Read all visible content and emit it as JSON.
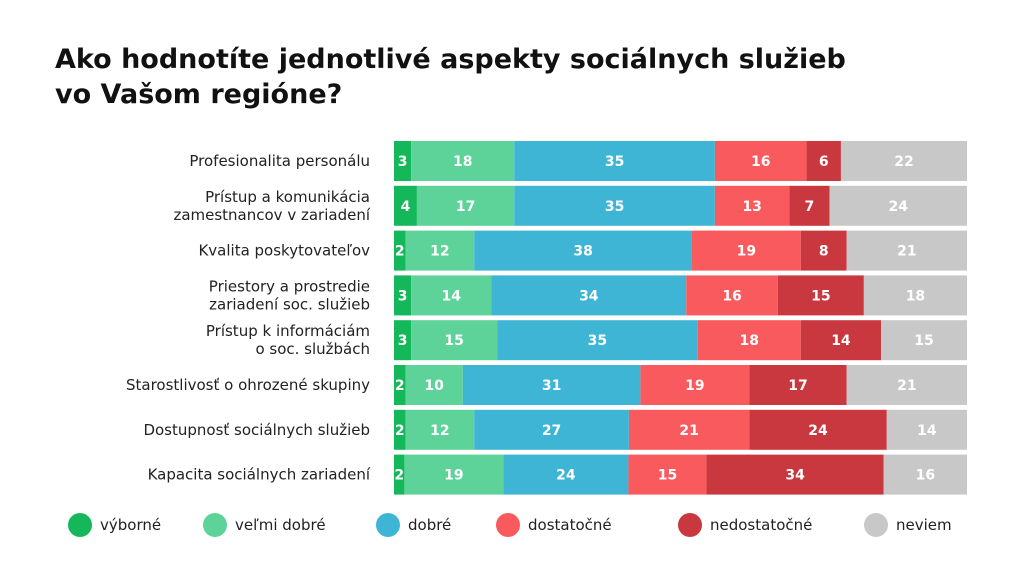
{
  "chart_data": {
    "type": "bar",
    "orientation": "horizontal",
    "stacked": true,
    "title_lines": [
      "Ako hodnotíte jednotlivé aspekty sociálnych služieb",
      "vo Vašom regióne?"
    ],
    "categories": [
      [
        "Profesionalita personálu"
      ],
      [
        "Prístup a komunikácia",
        "zamestnancov v zariadení"
      ],
      [
        "Kvalita poskytovateľov"
      ],
      [
        "Priestory a prostredie",
        "zariadení soc. služieb"
      ],
      [
        "Prístup k informáciám",
        "o soc. službách"
      ],
      [
        "Starostlivosť o ohrozené skupiny"
      ],
      [
        "Dostupnosť sociálnych služieb"
      ],
      [
        "Kapacita sociálnych zariadení"
      ]
    ],
    "series": [
      {
        "name": "výborné",
        "color": "#14b85a",
        "values": [
          3,
          4,
          2,
          3,
          3,
          2,
          2,
          2
        ]
      },
      {
        "name": "veľmi dobré",
        "color": "#5dd39a",
        "values": [
          18,
          17,
          12,
          14,
          15,
          10,
          12,
          19
        ]
      },
      {
        "name": "dobré",
        "color": "#3fb5d6",
        "values": [
          35,
          35,
          38,
          34,
          35,
          31,
          27,
          24
        ]
      },
      {
        "name": "dostatočné",
        "color": "#f85a5e",
        "values": [
          16,
          13,
          19,
          16,
          18,
          19,
          21,
          15
        ]
      },
      {
        "name": "nedostatočné",
        "color": "#c9383f",
        "values": [
          6,
          7,
          8,
          15,
          14,
          17,
          24,
          34
        ]
      },
      {
        "name": "neviem",
        "color": "#c8c8c8",
        "values": [
          22,
          24,
          21,
          18,
          15,
          21,
          14,
          16
        ]
      }
    ],
    "legend_position": "bottom",
    "grid": false
  }
}
